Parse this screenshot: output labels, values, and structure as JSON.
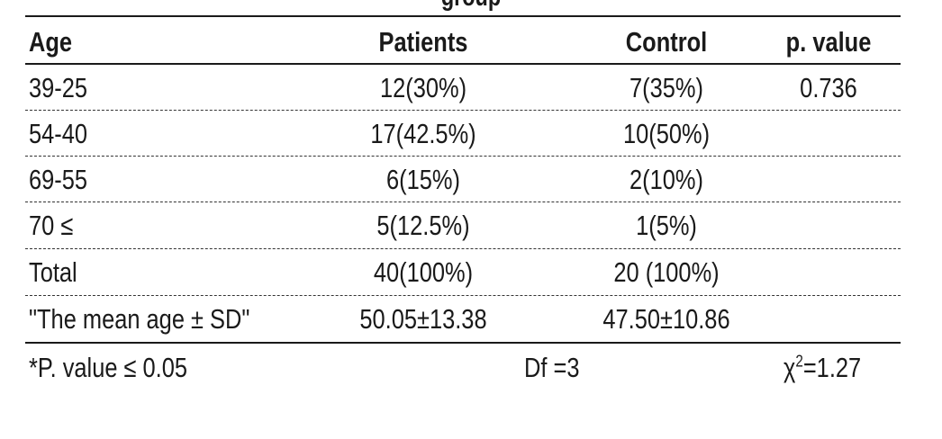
{
  "table": {
    "title": "group",
    "headers": {
      "age": "Age",
      "patients": "Patients",
      "control": "Control",
      "p_value": "p. value"
    },
    "rows": [
      {
        "age": "39-25",
        "patients": "12(30%)",
        "control": "7(35%)",
        "p_value": "0.736"
      },
      {
        "age": "54-40",
        "patients": "17(42.5%)",
        "control": "10(50%)",
        "p_value": ""
      },
      {
        "age": "69-55",
        "patients": "6(15%)",
        "control": "2(10%)",
        "p_value": ""
      },
      {
        "age": "70 ≤",
        "patients": "5(12.5%)",
        "control": "1(5%)",
        "p_value": ""
      },
      {
        "age": "Total",
        "patients": "40(100%)",
        "control": "20 (100%)",
        "p_value": ""
      },
      {
        "age": "\"The mean age ± SD\"",
        "patients": "50.05±13.38",
        "control": "47.50±10.86",
        "p_value": ""
      }
    ],
    "footer": {
      "significance": "*P. value ≤ 0.05",
      "df": "Df =3",
      "chi_symbol": "χ",
      "chi_exponent": "2",
      "chi_value": "=1.27"
    }
  }
}
